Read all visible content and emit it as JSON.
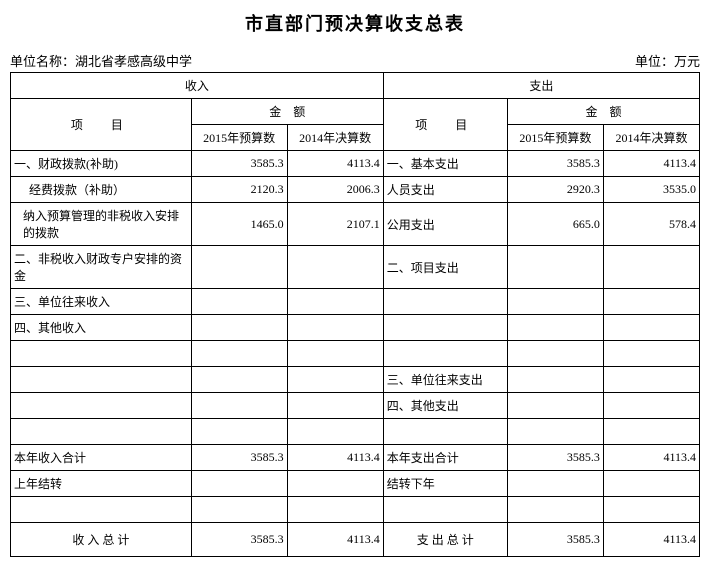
{
  "title": "市直部门预决算收支总表",
  "org_label": "单位名称：",
  "org_name": "湖北省孝感高级中学",
  "unit_label": "单位：万元",
  "headers": {
    "income": "收入",
    "expense": "支出",
    "item": "项　目",
    "amount": "金　额",
    "budget2015": "2015年预算数",
    "final2014": "2014年决算数"
  },
  "income_rows": [
    {
      "label": "一、财政拨款(补助)",
      "b2015": "3585.3",
      "f2014": "4113.4"
    },
    {
      "label": "经费拨款（补助）",
      "b2015": "2120.3",
      "f2014": "2006.3"
    },
    {
      "label": "纳入预算管理的非税收入安排的拨款",
      "b2015": "1465.0",
      "f2014": "2107.1"
    },
    {
      "label": "二、非税收入财政专户安排的资金",
      "b2015": "",
      "f2014": ""
    },
    {
      "label": "三、单位往来收入",
      "b2015": "",
      "f2014": ""
    },
    {
      "label": "四、其他收入",
      "b2015": "",
      "f2014": ""
    },
    {
      "label": "",
      "b2015": "",
      "f2014": ""
    },
    {
      "label": "",
      "b2015": "",
      "f2014": ""
    },
    {
      "label": "",
      "b2015": "",
      "f2014": ""
    },
    {
      "label": "",
      "b2015": "",
      "f2014": ""
    },
    {
      "label": "本年收入合计",
      "b2015": "3585.3",
      "f2014": "4113.4"
    },
    {
      "label": "上年结转",
      "b2015": "",
      "f2014": ""
    },
    {
      "label": "",
      "b2015": "",
      "f2014": ""
    },
    {
      "label": "收 入 总 计",
      "b2015": "3585.3",
      "f2014": "4113.4"
    }
  ],
  "expense_rows": [
    {
      "label": "一、基本支出",
      "b2015": "3585.3",
      "f2014": "4113.4"
    },
    {
      "label": "人员支出",
      "b2015": "2920.3",
      "f2014": "3535.0"
    },
    {
      "label": "公用支出",
      "b2015": "665.0",
      "f2014": "578.4"
    },
    {
      "label": "二、项目支出",
      "b2015": "",
      "f2014": ""
    },
    {
      "label": "",
      "b2015": "",
      "f2014": ""
    },
    {
      "label": "",
      "b2015": "",
      "f2014": ""
    },
    {
      "label": "",
      "b2015": "",
      "f2014": ""
    },
    {
      "label": "三、单位往来支出",
      "b2015": "",
      "f2014": ""
    },
    {
      "label": "四、其他支出",
      "b2015": "",
      "f2014": ""
    },
    {
      "label": "",
      "b2015": "",
      "f2014": ""
    },
    {
      "label": "本年支出合计",
      "b2015": "3585.3",
      "f2014": "4113.4"
    },
    {
      "label": "结转下年",
      "b2015": "",
      "f2014": ""
    },
    {
      "label": "",
      "b2015": "",
      "f2014": ""
    },
    {
      "label": "支 出 总 计",
      "b2015": "3585.3",
      "f2014": "4113.4"
    }
  ]
}
